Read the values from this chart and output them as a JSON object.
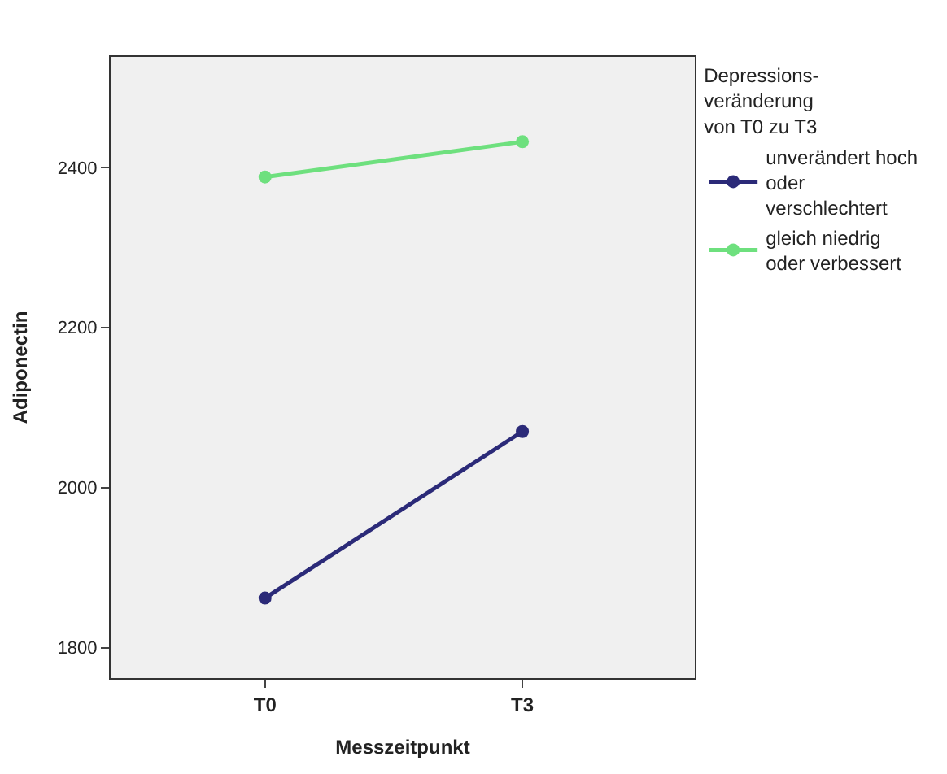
{
  "chart_data": {
    "type": "line",
    "xlabel": "Messzeitpunkt",
    "ylabel": "Adiponectin",
    "legend_title": "Depressions-\nveränderung\nvon T0 zu T3",
    "categories": [
      "T0",
      "T3"
    ],
    "series": [
      {
        "name": "unverändert hoch oder verschlechtert",
        "color": "#2b2a78",
        "values": [
          1862,
          2070
        ]
      },
      {
        "name": "gleich niedrig oder verbessert",
        "color": "#6ee07e",
        "values": [
          2388,
          2432
        ]
      }
    ],
    "ylim": [
      1762,
      2538
    ],
    "yticks": [
      1800,
      2000,
      2200,
      2400
    ],
    "grid": false,
    "legend": "right",
    "marker": "circle",
    "line_style": "solid"
  }
}
